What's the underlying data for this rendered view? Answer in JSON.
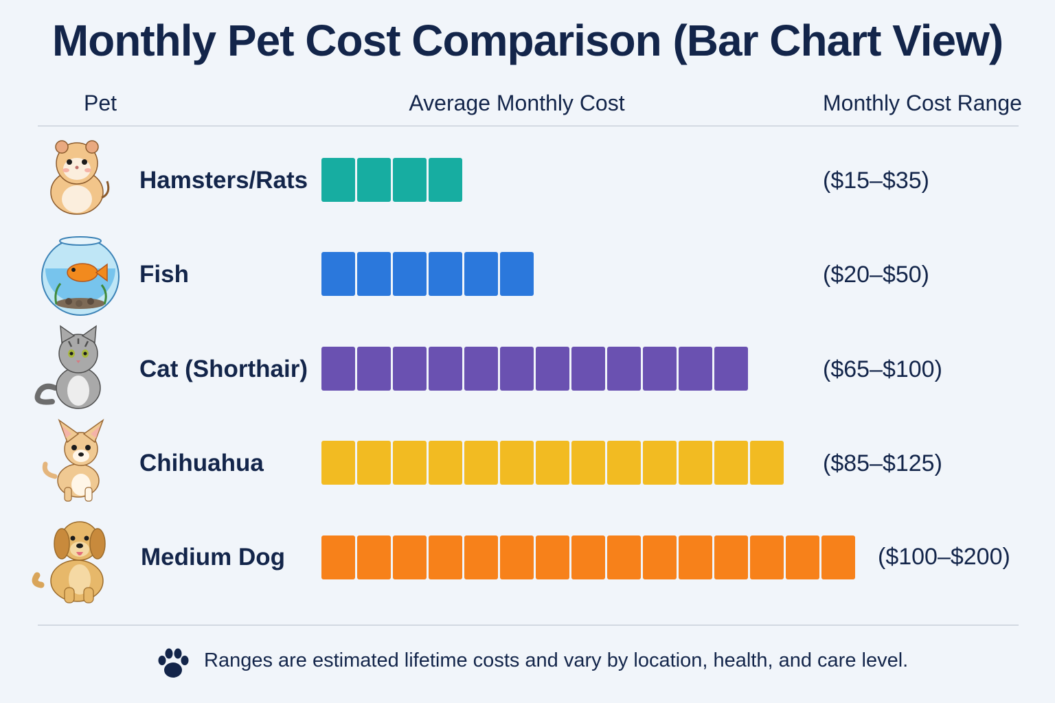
{
  "title": "Monthly Pet Cost Comparison (Bar Chart View)",
  "headers": {
    "pet": "Pet",
    "average": "Average Monthly Cost",
    "range": "Monthly Cost Range"
  },
  "chart_data": {
    "type": "bar",
    "orientation": "horizontal",
    "title": "Monthly Pet Cost Comparison (Bar Chart View)",
    "categories": [
      "Hamsters/Rats",
      "Fish",
      "Cat (Shorthair)",
      "Chihuahua",
      "Medium Dog"
    ],
    "values": [
      4,
      6,
      12,
      13,
      15
    ],
    "value_unit": "blocks",
    "ranges": [
      "($15–$35)",
      "($20–$50)",
      "($65–$100)",
      "($85–$125)",
      "($100–$200)"
    ],
    "colors": [
      "#17ada1",
      "#2b78dc",
      "#6a51b1",
      "#f2bb22",
      "#f7811a"
    ],
    "grid": false,
    "legend": "none"
  },
  "rows": [
    {
      "name": "Hamsters/Rats",
      "blocks": 4,
      "range": "($15–$35)",
      "color": "#17ada1",
      "icon": "hamster-icon"
    },
    {
      "name": "Fish",
      "blocks": 6,
      "range": "($20–$50)",
      "color": "#2b78dc",
      "icon": "fishbowl-icon"
    },
    {
      "name": "Cat (Shorthair)",
      "blocks": 12,
      "range": "($65–$100)",
      "color": "#6a51b1",
      "icon": "cat-icon"
    },
    {
      "name": "Chihuahua",
      "blocks": 13,
      "range": "($85–$125)",
      "color": "#f2bb22",
      "icon": "chihuahua-icon"
    },
    {
      "name": "Medium Dog",
      "blocks": 15,
      "range": "($100–$200)",
      "color": "#f7811a",
      "icon": "dog-icon"
    }
  ],
  "footer": {
    "icon": "paw-icon",
    "note": "Ranges are estimated lifetime costs and vary by location, health, and care level."
  }
}
